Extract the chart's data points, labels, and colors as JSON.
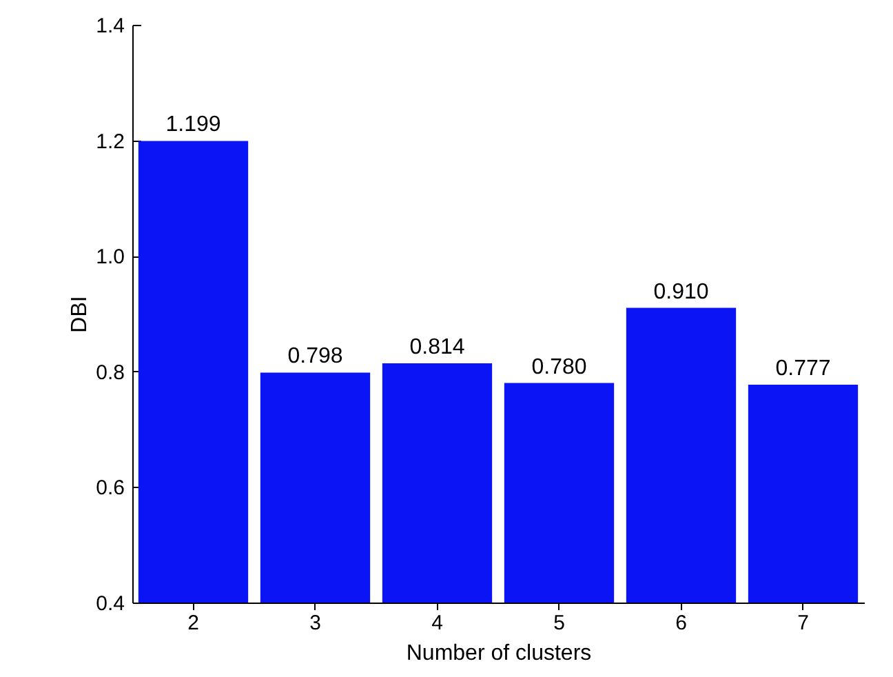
{
  "chart_data": {
    "type": "bar",
    "xlabel": "Number of clusters",
    "ylabel": "DBI",
    "categories": [
      "2",
      "3",
      "4",
      "5",
      "6",
      "7"
    ],
    "values": [
      1.199,
      0.798,
      0.814,
      0.78,
      0.91,
      0.777
    ],
    "value_labels": [
      "1.199",
      "0.798",
      "0.814",
      "0.780",
      "0.910",
      "0.777"
    ],
    "color": "#0a14f5",
    "ylim": [
      0.4,
      1.4
    ],
    "yticks": [
      0.4,
      0.6,
      0.8,
      {
        "value": 1,
        "label": "1.0"
      },
      1.2,
      1.4
    ],
    "grid": false
  }
}
